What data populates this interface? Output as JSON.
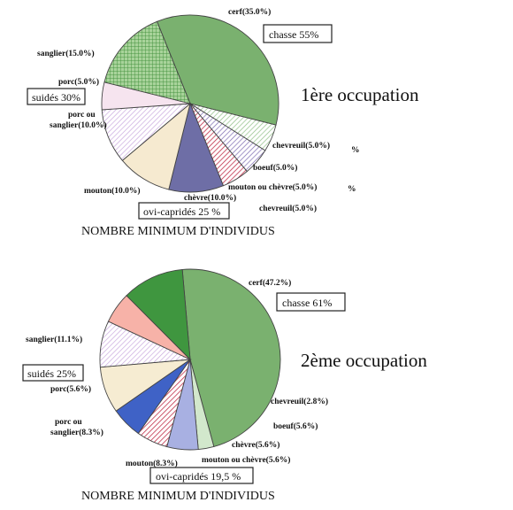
{
  "chart_data": [
    {
      "type": "pie",
      "title": "1ère occupation",
      "subtitle": "NOMBRE MINIMUM D'INDIVIDUS",
      "slices": [
        {
          "label": "cerf(35.0%)",
          "value": 35.0,
          "color": "#7ab16f"
        },
        {
          "label": "chevreuil(5.0%)",
          "value": 5.0,
          "color": "#ffffff",
          "pattern": "hatch-green"
        },
        {
          "label": "boeuf(5.0%)",
          "value": 5.0,
          "color": "#ffffff",
          "pattern": "hatch-purple"
        },
        {
          "label": "mouton ou chèvre(5.0%)",
          "value": 5.0,
          "color": "#ffffff",
          "pattern": "hatch-red"
        },
        {
          "label": "chèvre(10.0%)",
          "value": 10.0,
          "color": "#6e6ea6"
        },
        {
          "label": "mouton(10.0%)",
          "value": 10.0,
          "color": "#f6ead0"
        },
        {
          "label": "porc ou sanglier(10.0%)",
          "value": 10.0,
          "color": "#ffffff",
          "pattern": "hatch-pink"
        },
        {
          "label": "porc(5.0%)",
          "value": 5.0,
          "color": "#f6e4ef"
        },
        {
          "label": "sanglier(15.0%)",
          "value": 15.0,
          "color": "#a8d39a",
          "pattern": "grid-green"
        }
      ],
      "annotations": [
        "chasse 55%",
        "suidés 30%",
        "ovi-capridés 25 %",
        "chevreuil(5.0%)",
        "%",
        "%"
      ]
    },
    {
      "type": "pie",
      "title": "2ème occupation",
      "subtitle": "NOMBRE MINIMUM D'INDIVIDUS",
      "slices": [
        {
          "label": "cerf(47.2%)",
          "value": 47.2,
          "color": "#7ab16f"
        },
        {
          "label": "chevreuil(2.8%)",
          "value": 2.8,
          "color": "#d2e8cc"
        },
        {
          "label": "boeuf(5.6%)",
          "value": 5.6,
          "color": "#a8b0e2"
        },
        {
          "label": "chèvre(5.6%)",
          "value": 5.6,
          "color": "#ffffff",
          "pattern": "hatch-red"
        },
        {
          "label": "mouton ou chèvre(5.6%)",
          "value": 5.6,
          "color": "#3f62c6"
        },
        {
          "label": "mouton(8.3%)",
          "value": 8.3,
          "color": "#f6ecd2"
        },
        {
          "label": "porc ou sanglier(8.3%)",
          "value": 8.3,
          "color": "#ffffff",
          "pattern": "hatch-pink"
        },
        {
          "label": "porc(5.6%)",
          "value": 5.6,
          "color": "#f7b2a8"
        },
        {
          "label": "sanglier(11.1%)",
          "value": 11.1,
          "color": "#3f963f"
        }
      ],
      "annotations": [
        "chasse 61%",
        "suidés 25%",
        "ovi-capridés 19,5 %"
      ]
    }
  ],
  "texts": {
    "c1": {
      "title": "1ère occupation",
      "footer": "NOMBRE MINIMUM D'INDIVIDUS",
      "cerf": "cerf(35.0%)",
      "chevreuil": "chevreuil(5.0%)",
      "chevreuil_pct": "%",
      "boeuf": "boeuf(5.0%)",
      "mouton_chevre": "mouton ou chèvre(5.0%)",
      "mouton_chevre_pct": "%",
      "chevre": "chèvre(10.0%)",
      "chevreuil2": "chevreuil(5.0%)",
      "mouton": "mouton(10.0%)",
      "porc_sanglier_1": "porc ou",
      "porc_sanglier_2": "sanglier(10.0%)",
      "porc": "porc(5.0%)",
      "sanglier": "sanglier(15.0%)",
      "chasse": "chasse 55%",
      "suides": "suidés 30%",
      "ovi": "ovi-capridés 25 %"
    },
    "c2": {
      "title": "2ème occupation",
      "footer": "NOMBRE MINIMUM D'INDIVIDUS",
      "cerf": "cerf(47.2%)",
      "chevreuil": "chevreuil(2.8%)",
      "boeuf": "boeuf(5.6%)",
      "chevre": "chèvre(5.6%)",
      "mouton_chevre": "mouton ou chèvre(5.6%)",
      "mouton": "mouton(8.3%)",
      "porc_sanglier_1": "porc ou",
      "porc_sanglier_2": "sanglier(8.3%)",
      "porc": "porc(5.6%)",
      "sanglier": "sanglier(11.1%)",
      "chasse": "chasse 61%",
      "suides": "suidés 25%",
      "ovi": "ovi-capridés 19,5 %"
    }
  }
}
